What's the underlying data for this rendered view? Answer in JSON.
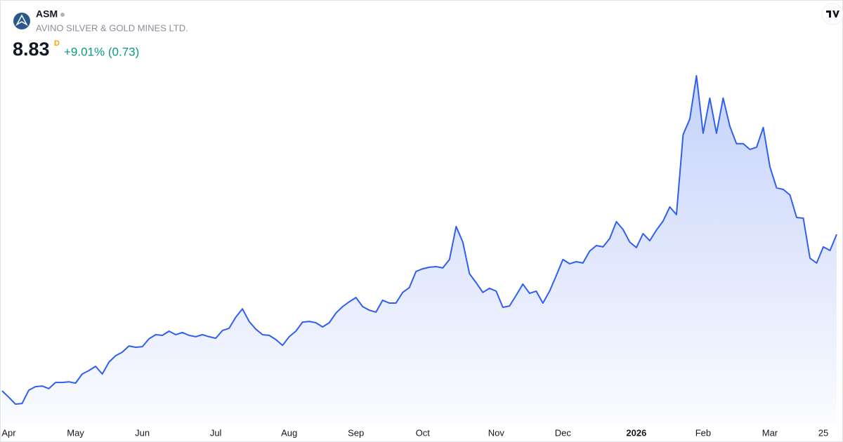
{
  "header": {
    "symbol": "ASM",
    "name": "AVINO SILVER & GOLD MINES LTD.",
    "price": "8.83",
    "interval": "D",
    "change": "+9.01% (0.73)"
  },
  "chart_data": {
    "type": "area",
    "color": "#2f5fef",
    "categories": [
      null,
      "Apr",
      null,
      null,
      null,
      null,
      null,
      null,
      null,
      null,
      null,
      "May",
      null,
      null,
      null,
      null,
      null,
      null,
      null,
      null,
      null,
      "Jun",
      null,
      null,
      null,
      null,
      null,
      null,
      null,
      null,
      null,
      null,
      "Jul",
      null,
      null,
      null,
      null,
      null,
      null,
      null,
      null,
      null,
      null,
      "Aug",
      null,
      null,
      null,
      null,
      null,
      null,
      null,
      null,
      null,
      "Sep",
      null,
      null,
      null,
      null,
      null,
      null,
      null,
      null,
      null,
      "Oct",
      null,
      null,
      null,
      null,
      null,
      null,
      null,
      null,
      null,
      null,
      "Nov",
      null,
      null,
      null,
      null,
      null,
      null,
      null,
      null,
      null,
      "Dec",
      null,
      null,
      null,
      null,
      null,
      null,
      null,
      null,
      null,
      null,
      "2026",
      null,
      null,
      null,
      null,
      null,
      null,
      null,
      null,
      null,
      "Feb",
      null,
      null,
      null,
      null,
      null,
      null,
      null,
      null,
      null,
      "Mar",
      null,
      null,
      null,
      null,
      null,
      null,
      null,
      "25",
      null,
      null
    ],
    "values": [
      1.75,
      1.46,
      1.15,
      1.18,
      1.78,
      1.94,
      1.97,
      1.85,
      2.13,
      2.13,
      2.16,
      2.1,
      2.51,
      2.67,
      2.86,
      2.51,
      3.05,
      3.34,
      3.5,
      3.78,
      3.72,
      3.75,
      4.1,
      4.29,
      4.26,
      4.45,
      4.29,
      4.39,
      4.26,
      4.2,
      4.29,
      4.2,
      4.13,
      4.48,
      4.58,
      5.08,
      5.46,
      4.89,
      4.54,
      4.29,
      4.26,
      4.07,
      3.81,
      4.2,
      4.45,
      4.86,
      4.89,
      4.83,
      4.64,
      4.83,
      5.27,
      5.56,
      5.78,
      5.97,
      5.56,
      5.4,
      5.31,
      5.85,
      5.72,
      5.72,
      6.2,
      6.42,
      7.15,
      7.27,
      7.34,
      7.37,
      7.31,
      7.69,
      9.18,
      8.48,
      7.05,
      6.64,
      6.2,
      6.39,
      6.26,
      5.53,
      5.59,
      6.07,
      6.58,
      6.16,
      6.26,
      5.72,
      6.26,
      6.96,
      7.69,
      7.5,
      7.59,
      7.53,
      8.07,
      8.32,
      8.26,
      8.64,
      9.4,
      9.05,
      8.48,
      8.23,
      8.86,
      8.54,
      9.02,
      9.43,
      10.07,
      9.72,
      13.34,
      14.04,
      16.0,
      13.4,
      14.99,
      13.4,
      14.99,
      13.72,
      12.93,
      12.93,
      12.67,
      12.77,
      13.66,
      11.88,
      10.93,
      10.86,
      10.61,
      9.59,
      9.56,
      7.75,
      7.53,
      8.26,
      8.1,
      8.83
    ]
  }
}
